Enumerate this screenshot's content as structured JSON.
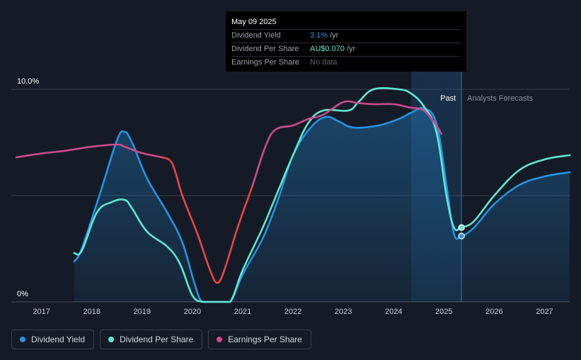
{
  "tooltip": {
    "date": "May 09 2025",
    "rows": [
      {
        "label": "Dividend Yield",
        "value": "3.1%",
        "unit": "/yr",
        "color": "#2394e6"
      },
      {
        "label": "Dividend Per Share",
        "value": "AU$0.070",
        "unit": "/yr",
        "color": "#5ee8d2"
      },
      {
        "label": "Earnings Per Share",
        "value": "No data",
        "unit": "",
        "color": "#5f6671"
      }
    ]
  },
  "legend": [
    {
      "label": "Dividend Yield",
      "color": "#2394e6"
    },
    {
      "label": "Dividend Per Share",
      "color": "#5ee8d2"
    },
    {
      "label": "Earnings Per Share",
      "color": "#cc4b8c"
    }
  ],
  "chart_data": {
    "type": "line",
    "y_tick_labels": [
      "10.0%",
      "0%"
    ],
    "ylim": [
      0,
      10
    ],
    "xlim": [
      2016.4,
      2027.5
    ],
    "x_ticks": [
      "2017",
      "2018",
      "2019",
      "2020",
      "2021",
      "2022",
      "2023",
      "2024",
      "2025",
      "2026",
      "2027"
    ],
    "past_label": "Past",
    "forecast_label": "Analysts Forecasts",
    "forecast_start": 2025.35,
    "highlight_start": 2024.35,
    "series": [
      {
        "name": "Dividend Yield",
        "color": "#2394e6",
        "fill": true,
        "x": [
          2017.65,
          2017.8,
          2018.15,
          2018.5,
          2018.65,
          2018.8,
          2019.1,
          2019.5,
          2019.8,
          2020.05,
          2020.2,
          2020.5,
          2020.75,
          2021.0,
          2021.4,
          2021.7,
          2022.0,
          2022.35,
          2022.65,
          2022.9,
          2023.2,
          2023.7,
          2024.1,
          2024.35,
          2024.6,
          2024.85,
          2025.05,
          2025.2,
          2025.35,
          2025.6,
          2026.0,
          2026.5,
          2027.0,
          2027.5
        ],
        "y": [
          1.9,
          2.5,
          5.0,
          7.6,
          8.0,
          7.5,
          5.8,
          4.2,
          2.8,
          0.8,
          0.0,
          0.0,
          0.0,
          1.3,
          3.0,
          4.8,
          6.9,
          8.2,
          8.7,
          8.5,
          8.2,
          8.3,
          8.6,
          8.9,
          9.1,
          8.4,
          5.5,
          3.2,
          3.1,
          3.5,
          4.6,
          5.5,
          5.9,
          6.1
        ]
      },
      {
        "name": "Dividend Per Share",
        "color": "#5ee8d2",
        "fill": false,
        "x": [
          2017.65,
          2017.8,
          2018.1,
          2018.4,
          2018.65,
          2018.8,
          2019.1,
          2019.5,
          2019.75,
          2020.0,
          2020.2,
          2020.5,
          2020.75,
          2021.0,
          2021.4,
          2021.7,
          2022.0,
          2022.3,
          2022.6,
          2023.1,
          2023.3,
          2023.6,
          2024.1,
          2024.35,
          2024.6,
          2024.85,
          2025.05,
          2025.2,
          2025.35,
          2025.6,
          2026.0,
          2026.5,
          2027.0,
          2027.5
        ],
        "y": [
          2.3,
          2.4,
          4.2,
          4.7,
          4.8,
          4.4,
          3.3,
          2.6,
          1.8,
          0.3,
          0.0,
          0.0,
          0.0,
          1.5,
          3.5,
          5.2,
          6.9,
          8.4,
          9.0,
          9.0,
          9.4,
          10.0,
          10.0,
          9.8,
          9.2,
          8.0,
          5.0,
          3.5,
          3.5,
          3.8,
          5.0,
          6.2,
          6.7,
          6.9
        ]
      },
      {
        "name": "Earnings Per Share",
        "color": "#cc4b8c",
        "alt_color": "#e84545",
        "fill": false,
        "x": [
          2016.5,
          2017.0,
          2017.5,
          2018.0,
          2018.5,
          2018.65,
          2019.0,
          2019.4,
          2019.6,
          2019.8,
          2020.1,
          2020.35,
          2020.5,
          2020.65,
          2020.9,
          2021.2,
          2021.45,
          2021.65,
          2022.0,
          2022.3,
          2022.6,
          2023.0,
          2023.3,
          2023.6,
          2024.0,
          2024.3,
          2024.6,
          2024.85,
          2024.95
        ],
        "y": [
          6.8,
          6.98,
          7.12,
          7.3,
          7.4,
          7.3,
          7.0,
          6.8,
          6.5,
          5.0,
          3.2,
          1.5,
          0.9,
          1.6,
          3.5,
          5.5,
          7.3,
          8.1,
          8.3,
          8.6,
          8.8,
          9.4,
          9.35,
          9.3,
          9.3,
          9.15,
          9.0,
          8.3,
          7.9
        ],
        "alt_range": [
          2019.55,
          2021.25
        ]
      }
    ]
  }
}
